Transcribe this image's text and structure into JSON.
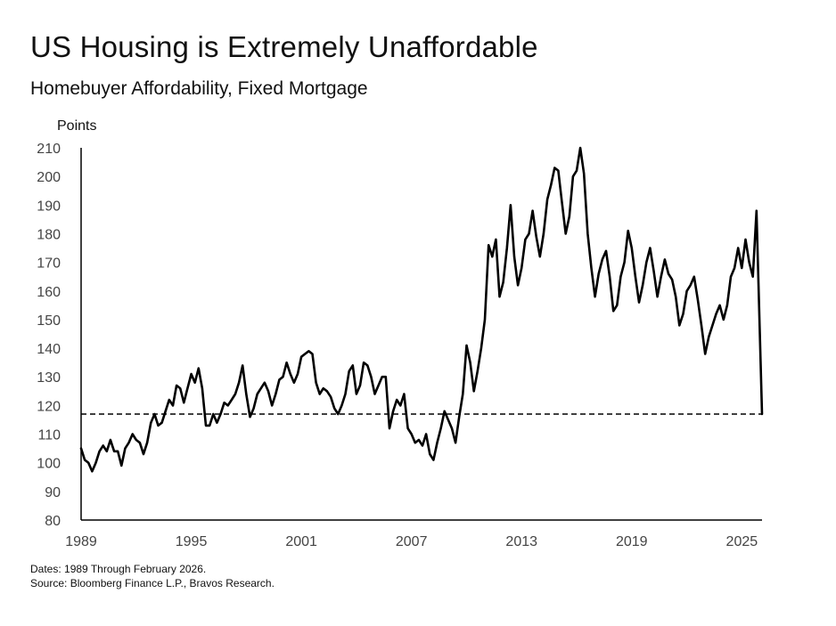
{
  "header": {
    "title": "US Housing is Extremely Unaffordable",
    "subtitle": "Homebuyer Affordability, Fixed Mortgage"
  },
  "footer": {
    "dates": "Dates: 1989 Through February 2026.",
    "source": "Source: Bloomberg Finance L.P., Bravos Research."
  },
  "colors": {
    "line": "#000000",
    "reference": "#000000",
    "axis": "#000000",
    "tick_text": "#444444"
  },
  "chart_data": {
    "type": "line",
    "title": "US Housing is Extremely Unaffordable",
    "subtitle": "Homebuyer Affordability, Fixed Mortgage",
    "ylabel": "Points",
    "xlabel": "",
    "xlim": [
      1989,
      2026.1
    ],
    "ylim": [
      80,
      210
    ],
    "x_ticks": [
      1989,
      1995,
      2001,
      2007,
      2013,
      2019,
      2025
    ],
    "y_ticks": [
      80,
      90,
      100,
      110,
      120,
      130,
      140,
      150,
      160,
      170,
      180,
      190,
      200,
      210
    ],
    "grid": false,
    "reference_line": {
      "y": 117,
      "style": "dashed"
    },
    "series": [
      {
        "values": [
          [
            1989.0,
            105
          ],
          [
            1989.2,
            101
          ],
          [
            1989.4,
            100
          ],
          [
            1989.6,
            97
          ],
          [
            1989.8,
            100
          ],
          [
            1990.0,
            104
          ],
          [
            1990.2,
            106
          ],
          [
            1990.4,
            104
          ],
          [
            1990.6,
            108
          ],
          [
            1990.8,
            104
          ],
          [
            1991.0,
            104
          ],
          [
            1991.2,
            99
          ],
          [
            1991.4,
            105
          ],
          [
            1991.6,
            107
          ],
          [
            1991.8,
            110
          ],
          [
            1992.0,
            108
          ],
          [
            1992.2,
            107
          ],
          [
            1992.4,
            103
          ],
          [
            1992.6,
            107
          ],
          [
            1992.8,
            114
          ],
          [
            1993.0,
            117
          ],
          [
            1993.2,
            113
          ],
          [
            1993.4,
            114
          ],
          [
            1993.6,
            118
          ],
          [
            1993.8,
            122
          ],
          [
            1994.0,
            120
          ],
          [
            1994.2,
            127
          ],
          [
            1994.4,
            126
          ],
          [
            1994.6,
            121
          ],
          [
            1994.8,
            126
          ],
          [
            1995.0,
            131
          ],
          [
            1995.2,
            128
          ],
          [
            1995.4,
            133
          ],
          [
            1995.6,
            126
          ],
          [
            1995.8,
            113
          ],
          [
            1996.0,
            113
          ],
          [
            1996.2,
            117
          ],
          [
            1996.4,
            114
          ],
          [
            1996.6,
            117
          ],
          [
            1996.8,
            121
          ],
          [
            1997.0,
            120
          ],
          [
            1997.2,
            122
          ],
          [
            1997.4,
            124
          ],
          [
            1997.6,
            128
          ],
          [
            1997.8,
            134
          ],
          [
            1998.0,
            124
          ],
          [
            1998.2,
            116
          ],
          [
            1998.4,
            119
          ],
          [
            1998.6,
            124
          ],
          [
            1998.8,
            126
          ],
          [
            1999.0,
            128
          ],
          [
            1999.2,
            125
          ],
          [
            1999.4,
            120
          ],
          [
            1999.6,
            124
          ],
          [
            1999.8,
            129
          ],
          [
            2000.0,
            130
          ],
          [
            2000.2,
            135
          ],
          [
            2000.4,
            131
          ],
          [
            2000.6,
            128
          ],
          [
            2000.8,
            131
          ],
          [
            2001.0,
            137
          ],
          [
            2001.2,
            138
          ],
          [
            2001.4,
            139
          ],
          [
            2001.6,
            138
          ],
          [
            2001.8,
            128
          ],
          [
            2002.0,
            124
          ],
          [
            2002.2,
            126
          ],
          [
            2002.4,
            125
          ],
          [
            2002.6,
            123
          ],
          [
            2002.8,
            119
          ],
          [
            2003.0,
            117
          ],
          [
            2003.2,
            120
          ],
          [
            2003.4,
            124
          ],
          [
            2003.6,
            132
          ],
          [
            2003.8,
            134
          ],
          [
            2004.0,
            124
          ],
          [
            2004.2,
            127
          ],
          [
            2004.4,
            135
          ],
          [
            2004.6,
            134
          ],
          [
            2004.8,
            130
          ],
          [
            2005.0,
            124
          ],
          [
            2005.2,
            127
          ],
          [
            2005.4,
            130
          ],
          [
            2005.6,
            130
          ],
          [
            2005.8,
            112
          ],
          [
            2006.0,
            118
          ],
          [
            2006.2,
            122
          ],
          [
            2006.4,
            120
          ],
          [
            2006.6,
            124
          ],
          [
            2006.8,
            112
          ],
          [
            2007.0,
            110
          ],
          [
            2007.2,
            107
          ],
          [
            2007.4,
            108
          ],
          [
            2007.6,
            106
          ],
          [
            2007.8,
            110
          ],
          [
            2008.0,
            103
          ],
          [
            2008.2,
            101
          ],
          [
            2008.4,
            107
          ],
          [
            2008.6,
            112
          ],
          [
            2008.8,
            118
          ],
          [
            2009.0,
            115
          ],
          [
            2009.2,
            112
          ],
          [
            2009.4,
            107
          ],
          [
            2009.6,
            116
          ],
          [
            2009.8,
            124
          ],
          [
            2010.0,
            141
          ],
          [
            2010.2,
            135
          ],
          [
            2010.4,
            125
          ],
          [
            2010.6,
            132
          ],
          [
            2010.8,
            140
          ],
          [
            2011.0,
            150
          ],
          [
            2011.2,
            176
          ],
          [
            2011.4,
            172
          ],
          [
            2011.6,
            178
          ],
          [
            2011.8,
            158
          ],
          [
            2012.0,
            163
          ],
          [
            2012.2,
            175
          ],
          [
            2012.4,
            190
          ],
          [
            2012.6,
            172
          ],
          [
            2012.8,
            162
          ],
          [
            2013.0,
            168
          ],
          [
            2013.2,
            178
          ],
          [
            2013.4,
            180
          ],
          [
            2013.6,
            188
          ],
          [
            2013.8,
            179
          ],
          [
            2014.0,
            172
          ],
          [
            2014.2,
            180
          ],
          [
            2014.4,
            192
          ],
          [
            2014.6,
            197
          ],
          [
            2014.8,
            203
          ],
          [
            2015.0,
            202
          ],
          [
            2015.2,
            191
          ],
          [
            2015.4,
            180
          ],
          [
            2015.6,
            186
          ],
          [
            2015.8,
            200
          ],
          [
            2016.0,
            202
          ],
          [
            2016.2,
            210
          ],
          [
            2016.4,
            201
          ],
          [
            2016.6,
            180
          ],
          [
            2016.8,
            168
          ],
          [
            2017.0,
            158
          ],
          [
            2017.2,
            166
          ],
          [
            2017.4,
            171
          ],
          [
            2017.6,
            174
          ],
          [
            2017.8,
            165
          ],
          [
            2018.0,
            153
          ],
          [
            2018.2,
            155
          ],
          [
            2018.4,
            165
          ],
          [
            2018.6,
            170
          ],
          [
            2018.8,
            181
          ],
          [
            2019.0,
            175
          ],
          [
            2019.2,
            165
          ],
          [
            2019.4,
            156
          ],
          [
            2019.6,
            162
          ],
          [
            2019.8,
            170
          ],
          [
            2020.0,
            175
          ],
          [
            2020.2,
            167
          ],
          [
            2020.4,
            158
          ],
          [
            2020.6,
            165
          ],
          [
            2020.8,
            171
          ],
          [
            2021.0,
            166
          ],
          [
            2021.2,
            164
          ],
          [
            2021.4,
            158
          ],
          [
            2021.6,
            148
          ],
          [
            2021.8,
            152
          ],
          [
            2022.0,
            160
          ],
          [
            2022.2,
            162
          ],
          [
            2022.4,
            165
          ],
          [
            2022.6,
            157
          ],
          [
            2022.8,
            148
          ],
          [
            2023.0,
            138
          ],
          [
            2023.2,
            144
          ],
          [
            2023.4,
            148
          ],
          [
            2023.6,
            152
          ],
          [
            2023.8,
            155
          ],
          [
            2024.0,
            150
          ],
          [
            2024.2,
            155
          ],
          [
            2024.4,
            165
          ],
          [
            2024.6,
            168
          ],
          [
            2024.8,
            175
          ],
          [
            2025.0,
            168
          ],
          [
            2025.2,
            178
          ],
          [
            2025.4,
            170
          ],
          [
            2025.6,
            165
          ],
          [
            2025.8,
            188
          ],
          [
            2026.1,
            117
          ]
        ]
      }
    ]
  },
  "chart_extra_note": ""
}
